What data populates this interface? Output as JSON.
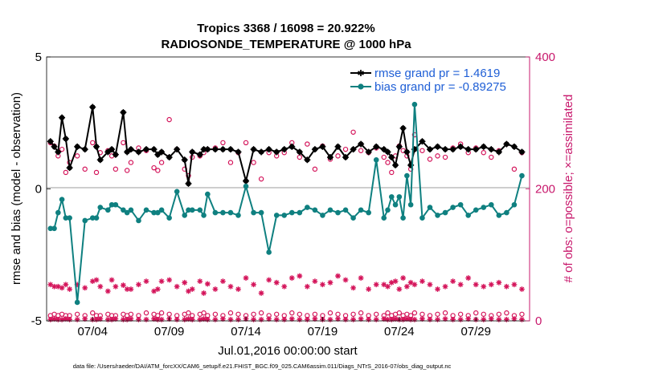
{
  "chart_data": {
    "type": "line",
    "title": [
      "Tropics 3368 / 16098 = 20.922%",
      "RADIOSONDE_TEMPERATURE @ 1000 hPa"
    ],
    "xlabel": "Jul.01,2016 00:00:00 start",
    "ylabel": "rmse and bias (model - observation)",
    "y2label": "# of obs: o=possible; ×=assimilated",
    "xlim": [
      0,
      31.5
    ],
    "ylim": [
      -5,
      5
    ],
    "y2lim": [
      0,
      400
    ],
    "x_ticks": [
      3,
      8,
      13,
      18,
      23,
      28
    ],
    "x_tick_labels": [
      "07/04",
      "07/09",
      "07/14",
      "07/19",
      "07/24",
      "07/29"
    ],
    "y_ticks": [
      -5,
      0,
      5
    ],
    "y_tick_labels": [
      "-5",
      "0",
      "5"
    ],
    "y2_ticks": [
      0,
      200,
      400
    ],
    "y2_tick_labels": [
      "0",
      "200",
      "400"
    ],
    "legend": [
      "rmse grand pr = 1.4619",
      "bias grand pr = -0.89275"
    ],
    "footer": "data file: /Users/raeder/DAI/ATM_forcXX/CAM6_setup/f.e21.FHIST_BGC.f09_025.CAM6assim.011/Diags_NTrS_2016-07/obs_diag_output.nc",
    "colors": {
      "rmse": "#000000",
      "bias": "#0f8080",
      "obs_count": "#d4145a",
      "axis_right": "#c8186c",
      "legend_text": "#1f5fd6",
      "zero_line": "#b0b0b0"
    },
    "series": [
      {
        "name": "rmse",
        "axis": "left",
        "x": [
          0.25,
          0.5,
          0.75,
          1.0,
          1.25,
          1.5,
          2.0,
          2.5,
          3.0,
          3.25,
          3.5,
          4.0,
          4.25,
          4.5,
          5.0,
          5.25,
          5.5,
          6.0,
          6.5,
          7.0,
          7.25,
          7.5,
          8.0,
          8.5,
          9.0,
          9.25,
          9.5,
          10.0,
          10.25,
          10.5,
          11.0,
          11.5,
          12.0,
          12.5,
          13.0,
          13.5,
          14.0,
          14.5,
          15.0,
          15.5,
          16.0,
          16.5,
          17.0,
          17.5,
          18.0,
          18.5,
          19.0,
          19.5,
          20.0,
          20.5,
          21.0,
          21.5,
          22.0,
          22.25,
          22.5,
          22.75,
          23.0,
          23.25,
          23.5,
          23.75,
          24.0,
          24.5,
          25.0,
          25.5,
          26.0,
          26.5,
          27.0,
          27.5,
          28.0,
          28.5,
          29.0,
          29.5,
          30.0,
          30.5,
          31.0
        ],
        "values": [
          1.8,
          1.6,
          1.4,
          2.7,
          1.9,
          0.8,
          1.6,
          1.5,
          3.1,
          1.6,
          1.1,
          1.4,
          1.5,
          1.3,
          2.9,
          1.4,
          1.5,
          1.4,
          1.5,
          1.5,
          1.3,
          1.4,
          1.2,
          1.5,
          1.1,
          0.2,
          1.4,
          1.3,
          1.5,
          1.5,
          1.5,
          1.5,
          1.5,
          1.4,
          0.3,
          1.5,
          1.4,
          1.5,
          1.4,
          1.5,
          1.6,
          1.4,
          1.1,
          1.5,
          1.6,
          1.2,
          1.6,
          1.2,
          1.5,
          1.7,
          1.4,
          1.6,
          1.5,
          1.4,
          1.2,
          0.9,
          1.6,
          2.3,
          1.4,
          0.9,
          1.5,
          1.8,
          1.5,
          1.6,
          1.5,
          1.5,
          1.6,
          1.5,
          1.5,
          1.6,
          1.5,
          1.4,
          1.7,
          1.6,
          1.4
        ]
      },
      {
        "name": "bias",
        "axis": "left",
        "x": [
          0.25,
          0.5,
          0.75,
          1.0,
          1.25,
          1.5,
          2.0,
          2.5,
          3.0,
          3.25,
          3.5,
          4.0,
          4.25,
          4.5,
          5.0,
          5.25,
          5.5,
          6.0,
          6.5,
          7.0,
          7.25,
          7.5,
          8.0,
          8.5,
          9.0,
          9.25,
          9.5,
          10.0,
          10.25,
          10.5,
          11.0,
          11.5,
          12.0,
          12.5,
          13.0,
          13.5,
          14.0,
          14.5,
          15.0,
          15.5,
          16.0,
          16.5,
          17.0,
          17.5,
          18.0,
          18.5,
          19.0,
          19.5,
          20.0,
          20.5,
          21.0,
          21.5,
          22.0,
          22.25,
          22.5,
          22.75,
          23.0,
          23.25,
          23.5,
          23.75,
          24.0,
          24.5,
          25.0,
          25.5,
          26.0,
          26.5,
          27.0,
          27.5,
          28.0,
          28.5,
          29.0,
          29.5,
          30.0,
          30.5,
          31.0
        ],
        "values": [
          -1.5,
          -1.5,
          -0.9,
          -0.4,
          -1.1,
          -1.1,
          -4.3,
          -1.2,
          -1.1,
          -1.1,
          -0.7,
          -0.8,
          -0.6,
          -0.6,
          -0.8,
          -0.9,
          -0.8,
          -1.2,
          -0.8,
          -0.9,
          -0.9,
          -0.8,
          -1.1,
          -0.1,
          -1.0,
          -0.8,
          -0.8,
          -0.8,
          -1.0,
          -0.2,
          -0.9,
          -0.9,
          -0.9,
          -1.0,
          0.1,
          -0.9,
          -0.9,
          -2.4,
          -1.0,
          -1.0,
          -0.9,
          -0.9,
          -0.7,
          -0.8,
          -1.0,
          -0.8,
          -0.9,
          -0.8,
          -1.1,
          -0.8,
          -0.9,
          1.1,
          -1.1,
          -0.8,
          -0.3,
          -0.6,
          -0.3,
          -1.1,
          0.5,
          -0.6,
          3.2,
          -1.1,
          -0.7,
          -1.0,
          -0.9,
          -0.7,
          -0.6,
          -1.0,
          -0.8,
          -0.7,
          -0.6,
          -1.0,
          -0.9,
          -0.6,
          0.5
        ]
      },
      {
        "name": "obs possible (upper)",
        "axis": "right",
        "marker": "circle",
        "x": [
          0.25,
          0.5,
          0.75,
          1.0,
          1.25,
          1.5,
          2.0,
          2.5,
          3.0,
          3.25,
          3.5,
          4.0,
          4.25,
          4.5,
          5.0,
          5.25,
          5.5,
          6.0,
          6.5,
          7.0,
          7.25,
          7.5,
          8.0,
          8.5,
          9.0,
          9.25,
          9.5,
          10.0,
          10.25,
          10.5,
          11.0,
          11.5,
          12.0,
          12.5,
          13.0,
          13.5,
          14.0,
          14.5,
          15.0,
          15.5,
          16.0,
          16.5,
          17.0,
          17.5,
          18.0,
          18.5,
          19.0,
          19.5,
          20.0,
          20.5,
          21.0,
          21.5,
          22.0,
          22.25,
          22.5,
          22.75,
          23.0,
          23.25,
          23.5,
          23.75,
          24.0,
          24.5,
          25.0,
          25.5,
          26.0,
          26.5,
          27.0,
          27.5,
          28.0,
          28.5,
          29.0,
          29.5,
          30.0,
          30.5,
          31.0
        ],
        "values": [
          270,
          265,
          250,
          260,
          225,
          240,
          250,
          230,
          270,
          225,
          255,
          258,
          250,
          230,
          270,
          228,
          240,
          262,
          258,
          232,
          228,
          240,
          305,
          260,
          230,
          220,
          248,
          250,
          255,
          260,
          262,
          270,
          240,
          255,
          270,
          240,
          215,
          255,
          250,
          255,
          270,
          248,
          268,
          230,
          265,
          245,
          250,
          260,
          286,
          258,
          255,
          262,
          248,
          240,
          225,
          250,
          265,
          258,
          250,
          230,
          282,
          258,
          245,
          250,
          248,
          262,
          268,
          255,
          262,
          255,
          248,
          258,
          268,
          230,
          255
        ]
      },
      {
        "name": "obs assimilated (upper)",
        "axis": "right",
        "marker": "asterisk",
        "x": [
          0.25,
          0.5,
          0.75,
          1.0,
          1.25,
          1.5,
          2.0,
          2.5,
          3.0,
          3.25,
          3.5,
          4.0,
          4.25,
          4.5,
          5.0,
          5.25,
          5.5,
          6.0,
          6.5,
          7.0,
          7.25,
          7.5,
          8.0,
          8.5,
          9.0,
          9.25,
          9.5,
          10.0,
          10.25,
          10.5,
          11.0,
          11.5,
          12.0,
          12.5,
          13.0,
          13.5,
          14.0,
          14.5,
          15.0,
          15.5,
          16.0,
          16.5,
          17.0,
          17.5,
          18.0,
          18.5,
          19.0,
          19.5,
          20.0,
          20.5,
          21.0,
          21.5,
          22.0,
          22.25,
          22.5,
          22.75,
          23.0,
          23.25,
          23.5,
          23.75,
          24.0,
          24.5,
          25.0,
          25.5,
          26.0,
          26.5,
          27.0,
          27.5,
          28.0,
          28.5,
          29.0,
          29.5,
          30.0,
          30.5,
          31.0
        ],
        "values": [
          55,
          52,
          52,
          50,
          55,
          48,
          55,
          50,
          60,
          62,
          52,
          45,
          62,
          52,
          54,
          48,
          48,
          55,
          60,
          45,
          48,
          60,
          62,
          52,
          58,
          45,
          48,
          60,
          42,
          56,
          48,
          60,
          52,
          48,
          65,
          55,
          42,
          62,
          58,
          52,
          65,
          68,
          52,
          60,
          55,
          58,
          68,
          62,
          50,
          65,
          48,
          55,
          55,
          52,
          58,
          60,
          48,
          65,
          52,
          58,
          55,
          60,
          55,
          48,
          52,
          60,
          55,
          65,
          55,
          52,
          55,
          58,
          52,
          55,
          48
        ]
      },
      {
        "name": "obs possible (lower)",
        "axis": "right",
        "marker": "circle",
        "x": [
          0.25,
          0.5,
          0.75,
          1.0,
          1.25,
          1.5,
          2.0,
          2.5,
          3.0,
          3.25,
          3.5,
          4.0,
          4.25,
          4.5,
          5.0,
          5.25,
          5.5,
          6.0,
          6.5,
          7.0,
          7.25,
          7.5,
          8.0,
          8.5,
          9.0,
          9.25,
          9.5,
          10.0,
          10.25,
          10.5,
          11.0,
          11.5,
          12.0,
          12.5,
          13.0,
          13.5,
          14.0,
          14.5,
          15.0,
          15.5,
          16.0,
          16.5,
          17.0,
          17.5,
          18.0,
          18.5,
          19.0,
          19.5,
          20.0,
          20.5,
          21.0,
          21.5,
          22.0,
          22.25,
          22.5,
          22.75,
          23.0,
          23.25,
          23.5,
          23.75,
          24.0,
          24.5,
          25.0,
          25.5,
          26.0,
          26.5,
          27.0,
          27.5,
          28.0,
          28.5,
          29.0,
          29.5,
          30.0,
          30.5,
          31.0
        ],
        "values": [
          8,
          10,
          8,
          10,
          8,
          8,
          10,
          8,
          12,
          8,
          8,
          10,
          8,
          8,
          10,
          8,
          10,
          8,
          12,
          10,
          8,
          12,
          10,
          8,
          10,
          12,
          8,
          10,
          12,
          8,
          10,
          8,
          12,
          10,
          8,
          10,
          12,
          8,
          10,
          8,
          12,
          10,
          8,
          10,
          8,
          12,
          10,
          8,
          10,
          12,
          8,
          10,
          8,
          12,
          8,
          10,
          12,
          8,
          10,
          8,
          12,
          10,
          8,
          10,
          12,
          8,
          10,
          8,
          12,
          10,
          8,
          10,
          12,
          8,
          10
        ]
      },
      {
        "name": "obs assimilated (lower)",
        "axis": "right",
        "marker": "asterisk",
        "x": [
          0.25,
          0.5,
          0.75,
          1.0,
          1.25,
          1.5,
          2.0,
          2.5,
          3.0,
          3.25,
          3.5,
          4.0,
          4.25,
          4.5,
          5.0,
          5.25,
          5.5,
          6.0,
          6.5,
          7.0,
          7.25,
          7.5,
          8.0,
          8.5,
          9.0,
          9.25,
          9.5,
          10.0,
          10.25,
          10.5,
          11.0,
          11.5,
          12.0,
          12.5,
          13.0,
          13.5,
          14.0,
          14.5,
          15.0,
          15.5,
          16.0,
          16.5,
          17.0,
          17.5,
          18.0,
          18.5,
          19.0,
          19.5,
          20.0,
          20.5,
          21.0,
          21.5,
          22.0,
          22.25,
          22.5,
          22.75,
          23.0,
          23.25,
          23.5,
          23.75,
          24.0,
          24.5,
          25.0,
          25.5,
          26.0,
          26.5,
          27.0,
          27.5,
          28.0,
          28.5,
          29.0,
          29.5,
          30.0,
          30.5,
          31.0
        ],
        "values": [
          2,
          3,
          2,
          2,
          3,
          2,
          2,
          3,
          2,
          2,
          3,
          2,
          2,
          3,
          2,
          2,
          3,
          2,
          2,
          3,
          2,
          2,
          3,
          2,
          2,
          3,
          2,
          2,
          3,
          2,
          2,
          3,
          2,
          2,
          3,
          2,
          2,
          3,
          2,
          2,
          3,
          2,
          2,
          3,
          2,
          2,
          3,
          2,
          2,
          3,
          2,
          2,
          3,
          2,
          2,
          3,
          2,
          2,
          3,
          2,
          2,
          3,
          2,
          2,
          3,
          2,
          2,
          3,
          2,
          2,
          3,
          2,
          2,
          3,
          2
        ]
      }
    ]
  }
}
